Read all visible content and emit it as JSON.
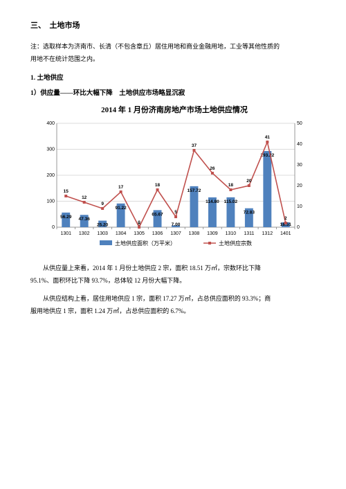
{
  "heading1": "三、　土地市场",
  "note_line1": "注：选取样本为济南市、长清（不包含章丘）居住用地和商业金融用地，工业等其他性质的",
  "note_line2": "用地不在统计范围之内。",
  "heading2": "1. 土地供应",
  "heading3": "1）供应量——环比大幅下降　土地供应市场略显沉寂",
  "chart": {
    "title": "2014 年 1 月份济南房地产市场土地供应情况",
    "type": "combo-bar-line",
    "categories": [
      "1301",
      "1302",
      "1303",
      "1304",
      "1305",
      "1306",
      "1307",
      "1308",
      "1309",
      "1310",
      "1311",
      "1312",
      "1401"
    ],
    "bar_values": [
      56.29,
      47.36,
      25.2,
      91.22,
      0,
      65.67,
      7.0,
      157.72,
      114.8,
      115.02,
      72.83,
      293.22,
      18.51
    ],
    "line_values": [
      15,
      12,
      9,
      17,
      0,
      18,
      5,
      37,
      26,
      18,
      20,
      41,
      2
    ],
    "bar_value_labels": [
      "56.29",
      "47.36",
      "25.20",
      "91.22",
      "0",
      "65.67",
      "7.00",
      "157.72",
      "114.80",
      "115.02",
      "72.83",
      "293.22",
      "18.51"
    ],
    "line_value_labels": [
      "15",
      "12",
      "9",
      "17",
      "0",
      "18",
      "5",
      "37",
      "26",
      "18",
      "20",
      "41",
      "2"
    ],
    "left_axis": {
      "min": 0,
      "max": 400,
      "step": 100
    },
    "right_axis": {
      "min": 0,
      "max": 50,
      "step": 10
    },
    "bar_color": "#4f81bd",
    "line_color": "#c0504d",
    "marker_color": "#c0504d",
    "grid_color": "#b7b7b7",
    "axis_color": "#808080",
    "background": "#ffffff",
    "bar_width": 0.45,
    "legend": {
      "bar": "土地供应面积（万平米）",
      "line": "土地供应宗数"
    }
  },
  "para1": "从供应量上来看，2014 年 1 月份土地供应 2 宗，面积 18.51 万㎡，宗数环比下降",
  "para1b": "95.1%、面积环比下降 93.7%，总体较 12 月份大幅下降。",
  "para2": "从供应结构上看，居住用地供应 1 宗，面积 17.27 万㎡，占总供应面积的 93.3%；商",
  "para2b": "服用地供应 1 宗，面积 1.24 万㎡，占总供应面积的 6.7%。"
}
